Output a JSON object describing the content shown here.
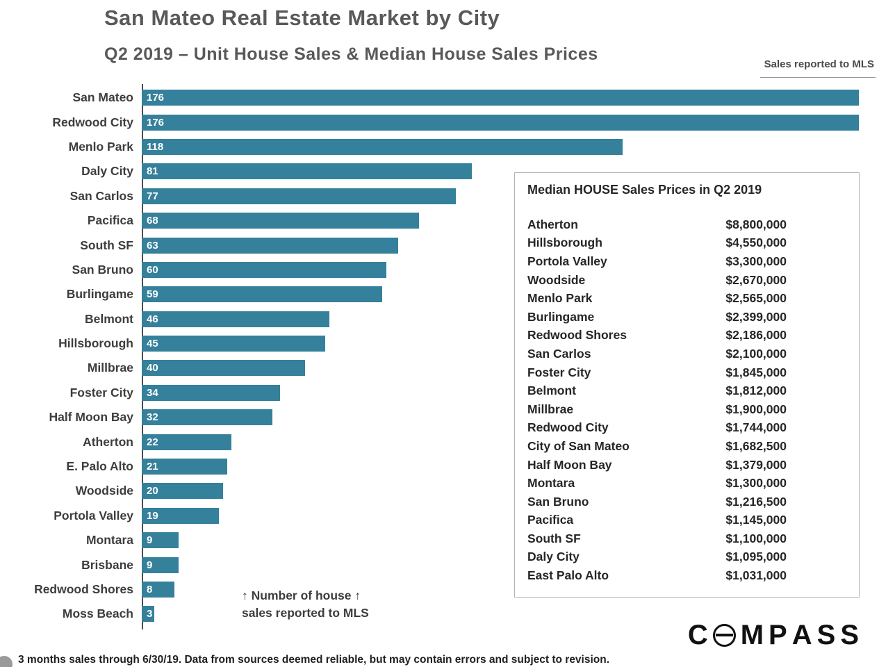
{
  "header": {
    "title": "San Mateo Real Estate Market by City",
    "subtitle": "Q2 2019 – Unit House Sales & Median House Sales Prices",
    "mls_note": "Sales reported to MLS"
  },
  "annotation": {
    "line1": "↑ Number of house ↑",
    "line2": "sales reported to MLS"
  },
  "price_table": {
    "title": "Median HOUSE Sales Prices in Q2 2019",
    "rows": [
      {
        "city": "Atherton",
        "price": "$8,800,000"
      },
      {
        "city": "Hillsborough",
        "price": "$4,550,000"
      },
      {
        "city": "Portola Valley",
        "price": "$3,300,000"
      },
      {
        "city": "Woodside",
        "price": "$2,670,000"
      },
      {
        "city": "Menlo Park",
        "price": "$2,565,000"
      },
      {
        "city": "Burlingame",
        "price": "$2,399,000"
      },
      {
        "city": "Redwood Shores",
        "price": "$2,186,000"
      },
      {
        "city": "San Carlos",
        "price": "$2,100,000"
      },
      {
        "city": "Foster City",
        "price": "$1,845,000"
      },
      {
        "city": "Belmont",
        "price": "$1,812,000"
      },
      {
        "city": "Millbrae",
        "price": "$1,900,000"
      },
      {
        "city": "Redwood City",
        "price": "$1,744,000"
      },
      {
        "city": "City of San Mateo",
        "price": "$1,682,500"
      },
      {
        "city": "Half Moon Bay",
        "price": "$1,379,000"
      },
      {
        "city": "Montara",
        "price": "$1,300,000"
      },
      {
        "city": "San Bruno",
        "price": "$1,216,500"
      },
      {
        "city": "Pacifica",
        "price": "$1,145,000"
      },
      {
        "city": "South SF",
        "price": "$1,100,000"
      },
      {
        "city": "Daly City",
        "price": "$1,095,000"
      },
      {
        "city": "East Palo Alto",
        "price": "$1,031,000"
      }
    ]
  },
  "footer": {
    "text": "3 months sales through 6/30/19. Data from sources deemed reliable, but may contain errors and subject to revision."
  },
  "logo": {
    "text": "COMPASS"
  },
  "colors": {
    "bar": "#35809B",
    "axis": "#4d4d4d",
    "title": "#595959",
    "text": "#3d3d3d"
  },
  "chart_data": {
    "type": "bar",
    "orientation": "horizontal",
    "title": "San Mateo Real Estate Market by City",
    "subtitle": "Q2 2019 – Unit House Sales & Median House Sales Prices",
    "categories": [
      "San Mateo",
      "Redwood City",
      "Menlo Park",
      "Daly City",
      "San Carlos",
      "Pacifica",
      "South SF",
      "San Bruno",
      "Burlingame",
      "Belmont",
      "Hillsborough",
      "Millbrae",
      "Foster City",
      "Half Moon Bay",
      "Atherton",
      "E. Palo Alto",
      "Woodside",
      "Portola Valley",
      "Montara",
      "Brisbane",
      "Redwood Shores",
      "Moss Beach"
    ],
    "values": [
      176,
      176,
      118,
      81,
      77,
      68,
      63,
      60,
      59,
      46,
      45,
      40,
      34,
      32,
      22,
      21,
      20,
      19,
      9,
      9,
      8,
      3
    ],
    "xlim": [
      0,
      176
    ],
    "value_label_position": "inside-left",
    "bar_color": "#35809B",
    "grid": false,
    "legend": "none",
    "xlabel": "Number of house sales reported to MLS",
    "ylabel": ""
  }
}
